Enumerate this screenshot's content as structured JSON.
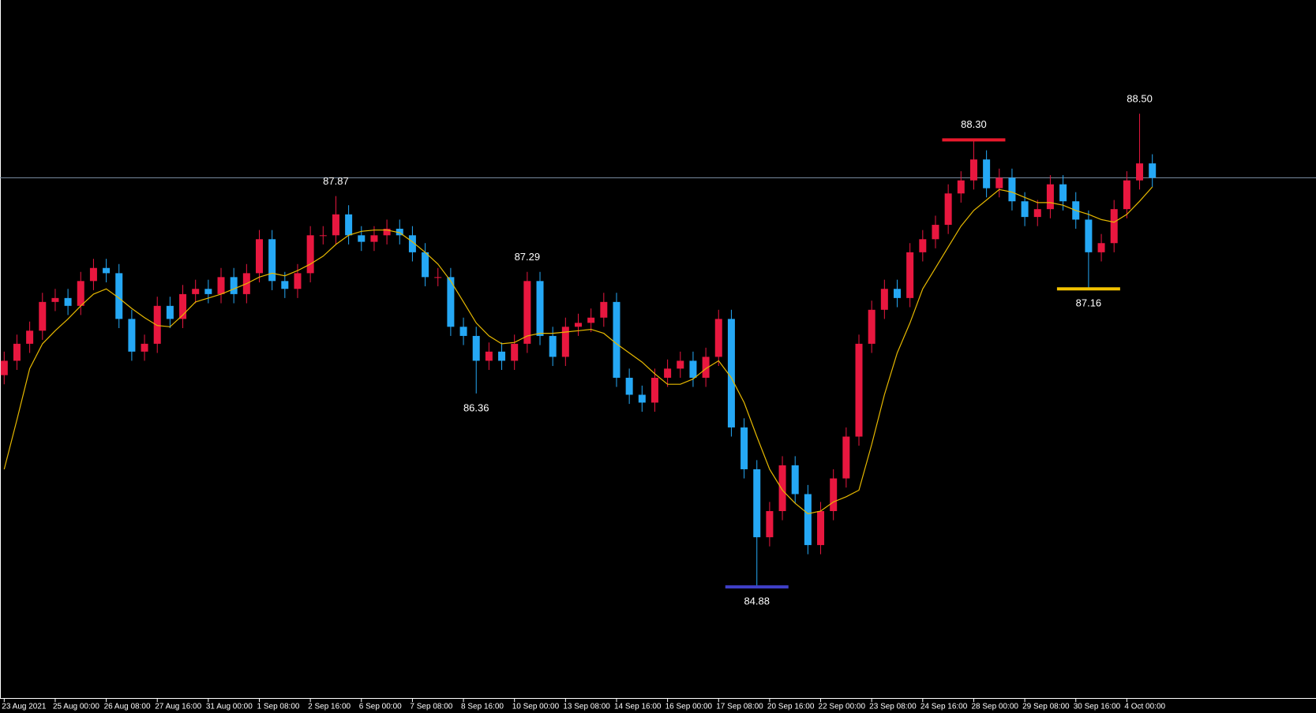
{
  "chart_data": {
    "type": "candlestick",
    "categories": [
      "23 Aug 2021",
      null,
      null,
      null,
      "25 Aug 00:00",
      null,
      null,
      null,
      "26 Aug 08:00",
      null,
      null,
      null,
      "27 Aug 16:00",
      null,
      null,
      null,
      "31 Aug 00:00",
      null,
      null,
      null,
      "1 Sep 08:00",
      null,
      null,
      null,
      "2 Sep 16:00",
      null,
      null,
      null,
      "6 Sep 00:00",
      null,
      null,
      null,
      "7 Sep 08:00",
      null,
      null,
      null,
      "8 Sep 16:00",
      null,
      null,
      null,
      "10 Sep 00:00",
      null,
      null,
      null,
      "13 Sep 08:00",
      null,
      null,
      null,
      "14 Sep 16:00",
      null,
      null,
      null,
      "16 Sep 00:00",
      null,
      null,
      null,
      "17 Sep 08:00",
      null,
      null,
      null,
      "20 Sep 16:00",
      null,
      null,
      null,
      "22 Sep 00:00",
      null,
      null,
      null,
      "23 Sep 08:00",
      null,
      null,
      null,
      "24 Sep 16:00",
      null,
      null,
      null,
      "28 Sep 00:00",
      null,
      null,
      null,
      "29 Sep 08:00",
      null,
      null,
      null,
      "30 Sep 16:00",
      null,
      null,
      null,
      "4 Oct 00:00",
      null,
      null
    ],
    "open": [
      86.5,
      86.61,
      86.74,
      86.84,
      87.06,
      87.09,
      87.03,
      87.22,
      87.32,
      87.28,
      86.93,
      86.68,
      86.74,
      87.03,
      86.93,
      87.12,
      87.16,
      87.12,
      87.25,
      87.12,
      87.28,
      87.54,
      87.22,
      87.16,
      87.28,
      87.57,
      87.57,
      87.73,
      87.57,
      87.52,
      87.57,
      87.62,
      87.57,
      87.44,
      87.25,
      87.25,
      86.87,
      86.8,
      86.61,
      86.68,
      86.61,
      86.74,
      87.22,
      86.8,
      86.64,
      86.87,
      86.9,
      86.94,
      87.06,
      86.48,
      86.35,
      86.29,
      86.48,
      86.55,
      86.61,
      86.48,
      86.64,
      86.93,
      86.1,
      85.78,
      85.26,
      85.46,
      85.81,
      85.59,
      85.2,
      85.46,
      85.71,
      86.03,
      86.74,
      87.0,
      87.16,
      87.09,
      87.44,
      87.54,
      87.65,
      87.89,
      87.99,
      88.15,
      87.93,
      88.01,
      87.83,
      87.71,
      87.77,
      87.96,
      87.83,
      87.69,
      87.44,
      87.51,
      87.77,
      87.99,
      88.12
    ],
    "high": [
      86.68,
      86.81,
      86.91,
      87.13,
      87.16,
      87.16,
      87.29,
      87.39,
      87.39,
      87.35,
      87.0,
      86.81,
      87.1,
      87.1,
      87.19,
      87.23,
      87.23,
      87.32,
      87.32,
      87.35,
      87.61,
      87.61,
      87.29,
      87.35,
      87.64,
      87.64,
      87.87,
      87.8,
      87.64,
      87.64,
      87.69,
      87.69,
      87.64,
      87.51,
      87.32,
      87.32,
      86.94,
      86.87,
      86.75,
      86.75,
      86.81,
      87.29,
      87.29,
      86.87,
      86.94,
      86.97,
      87.01,
      87.13,
      87.13,
      86.55,
      86.42,
      86.55,
      86.62,
      86.68,
      86.68,
      86.71,
      87.0,
      87.0,
      86.17,
      85.85,
      85.53,
      85.88,
      85.88,
      85.66,
      85.53,
      85.78,
      86.1,
      86.81,
      87.07,
      87.23,
      87.23,
      87.51,
      87.61,
      87.72,
      87.96,
      88.06,
      88.3,
      88.22,
      88.08,
      88.08,
      87.9,
      87.84,
      88.03,
      88.03,
      87.9,
      87.76,
      87.58,
      87.84,
      88.06,
      88.5,
      88.19
    ],
    "low": [
      86.43,
      86.54,
      86.67,
      86.77,
      86.99,
      86.96,
      86.96,
      87.15,
      87.21,
      86.86,
      86.61,
      86.61,
      86.67,
      86.86,
      86.86,
      87.05,
      87.05,
      87.05,
      87.05,
      87.05,
      87.21,
      87.15,
      87.09,
      87.09,
      87.21,
      87.5,
      87.5,
      87.5,
      87.45,
      87.45,
      87.5,
      87.5,
      87.37,
      87.18,
      87.18,
      86.8,
      86.73,
      86.36,
      86.54,
      86.54,
      86.54,
      86.67,
      86.73,
      86.57,
      86.57,
      86.8,
      86.83,
      86.87,
      86.41,
      86.28,
      86.22,
      86.22,
      86.41,
      86.48,
      86.41,
      86.41,
      86.57,
      86.03,
      85.71,
      84.88,
      85.19,
      85.39,
      85.52,
      85.13,
      85.13,
      85.39,
      85.64,
      85.96,
      86.67,
      86.93,
      87.02,
      87.02,
      87.37,
      87.47,
      87.58,
      87.82,
      87.92,
      87.86,
      87.86,
      87.76,
      87.64,
      87.64,
      87.7,
      87.76,
      87.62,
      87.16,
      87.37,
      87.44,
      87.7,
      87.92,
      87.94
    ],
    "close": [
      86.61,
      86.74,
      86.84,
      87.06,
      87.09,
      87.03,
      87.22,
      87.32,
      87.28,
      86.93,
      86.68,
      86.74,
      87.03,
      86.93,
      87.12,
      87.16,
      87.12,
      87.25,
      87.12,
      87.28,
      87.54,
      87.22,
      87.16,
      87.28,
      87.57,
      87.57,
      87.73,
      87.57,
      87.52,
      87.57,
      87.62,
      87.57,
      87.44,
      87.25,
      87.25,
      86.87,
      86.8,
      86.61,
      86.68,
      86.61,
      86.74,
      87.22,
      86.8,
      86.64,
      86.87,
      86.9,
      86.94,
      87.06,
      86.48,
      86.35,
      86.29,
      86.48,
      86.55,
      86.61,
      86.48,
      86.64,
      86.93,
      86.1,
      85.78,
      85.26,
      85.46,
      85.81,
      85.59,
      85.2,
      85.46,
      85.71,
      86.03,
      86.74,
      87.0,
      87.16,
      87.09,
      87.44,
      87.54,
      87.65,
      87.89,
      87.99,
      88.15,
      87.93,
      88.01,
      87.83,
      87.71,
      87.77,
      87.96,
      87.83,
      87.69,
      87.44,
      87.51,
      87.77,
      87.99,
      88.12,
      88.01
    ],
    "up_color": "#e8173f",
    "down_color": "#25a8f5",
    "ma": {
      "color": "#e6b800",
      "values": [
        85.78,
        86.16,
        86.55,
        86.74,
        86.84,
        86.93,
        87.03,
        87.12,
        87.16,
        87.09,
        87.01,
        86.94,
        86.88,
        86.87,
        86.96,
        87.06,
        87.09,
        87.12,
        87.16,
        87.2,
        87.25,
        87.28,
        87.26,
        87.3,
        87.35,
        87.41,
        87.5,
        87.57,
        87.6,
        87.61,
        87.61,
        87.59,
        87.52,
        87.44,
        87.35,
        87.22,
        87.06,
        86.9,
        86.8,
        86.74,
        86.75,
        86.8,
        86.82,
        86.82,
        86.83,
        86.84,
        86.85,
        86.82,
        86.74,
        86.67,
        86.6,
        86.51,
        86.43,
        86.43,
        86.47,
        86.55,
        86.61,
        86.48,
        86.29,
        86.03,
        85.78,
        85.62,
        85.52,
        85.44,
        85.46,
        85.53,
        85.57,
        85.62,
        85.97,
        86.35,
        86.67,
        86.9,
        87.16,
        87.32,
        87.48,
        87.64,
        87.76,
        87.84,
        87.92,
        87.9,
        87.86,
        87.82,
        87.82,
        87.8,
        87.76,
        87.73,
        87.69,
        87.67,
        87.73,
        87.83,
        87.94
      ]
    },
    "hline": {
      "value": 88.01,
      "color": "#7f93a8"
    },
    "annotations": [
      {
        "value": 87.87,
        "label": "87.87",
        "index": 26,
        "placement": "above",
        "marker_color": null
      },
      {
        "value": 87.29,
        "label": "87.29",
        "index": 41,
        "placement": "above",
        "marker_color": null
      },
      {
        "value": 86.36,
        "label": "86.36",
        "index": 37,
        "placement": "below",
        "marker_color": null
      },
      {
        "value": 84.88,
        "label": "84.88",
        "index": 59,
        "placement": "below",
        "marker_color": "#4040c8"
      },
      {
        "value": 88.3,
        "label": "88.30",
        "index": 76,
        "placement": "above",
        "marker_color": "#e8192c"
      },
      {
        "value": 87.16,
        "label": "87.16",
        "index": 85,
        "placement": "below",
        "marker_color": "#f2c200"
      },
      {
        "value": 88.5,
        "label": "88.50",
        "index": 89,
        "placement": "above",
        "marker_color": null
      }
    ],
    "ylim": [
      84.03,
      89.37
    ]
  }
}
